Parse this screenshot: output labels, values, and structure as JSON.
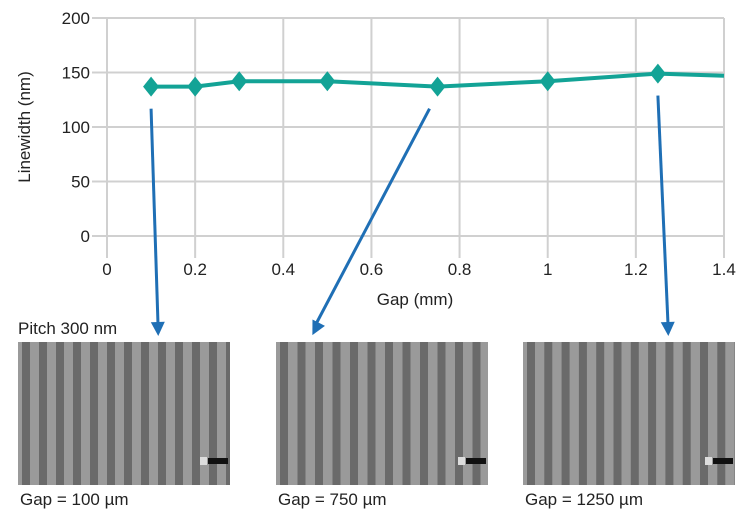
{
  "chart_data": {
    "type": "line",
    "xlabel": "Gap (mm)",
    "ylabel": "Linewidth (nm)",
    "xlim": [
      0,
      1.4
    ],
    "ylim": [
      0,
      200
    ],
    "xticks": [
      "0",
      "0.2",
      "0.4",
      "0.6",
      "0.8",
      "1",
      "1.2",
      "1.4"
    ],
    "yticks": [
      "0",
      "50",
      "100",
      "150",
      "200"
    ],
    "grid": true,
    "color": "#13a396",
    "arrow_color": "#1f6fb5",
    "series": [
      {
        "x": [
          0.1,
          0.2,
          0.3,
          0.5,
          0.75,
          1.0,
          1.25,
          1.4
        ],
        "y": [
          137,
          137,
          142,
          142,
          137,
          142,
          149,
          147
        ],
        "markers": [
          true,
          true,
          true,
          true,
          true,
          true,
          true,
          false
        ]
      }
    ]
  },
  "images": {
    "pitch_label": "Pitch 300 nm",
    "panels": [
      {
        "caption": "Gap = 100 µm",
        "gap_mm": 0.1
      },
      {
        "caption": "Gap = 750 µm",
        "gap_mm": 0.75
      },
      {
        "caption": "Gap = 1250 µm",
        "gap_mm": 1.25
      }
    ]
  }
}
